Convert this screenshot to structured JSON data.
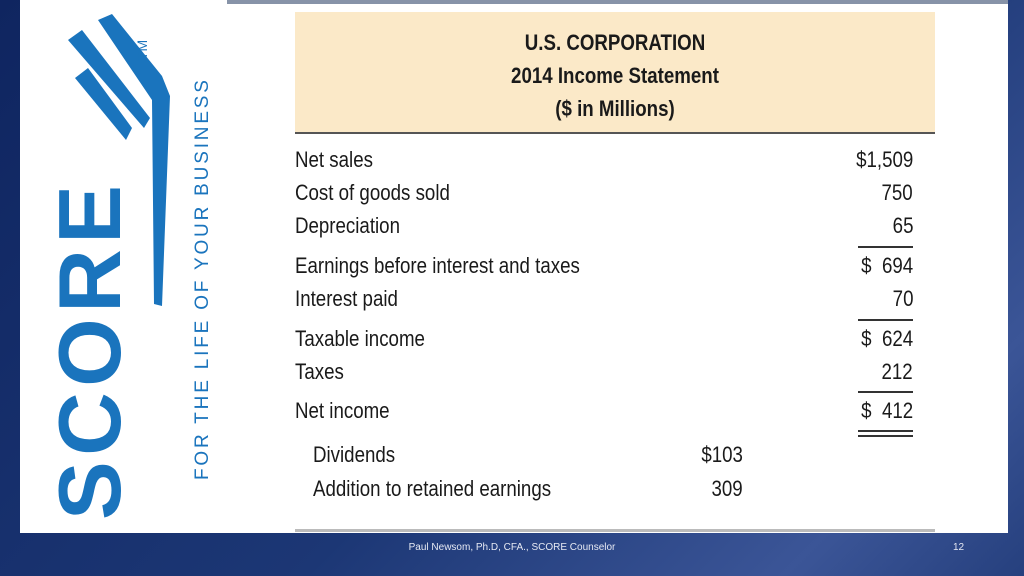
{
  "logo": {
    "text": "SCORE",
    "tagline": "FOR THE LIFE OF YOUR BUSINESS",
    "tm": "TM",
    "color": "#1a74bd"
  },
  "statement": {
    "title": "U.S. CORPORATION",
    "subtitle": "2014 Income Statement",
    "units": "($ in Millions)",
    "rows": [
      {
        "label": "Net sales",
        "value": "$1,509"
      },
      {
        "label": "Cost of goods sold",
        "value": "750"
      },
      {
        "label": "Depreciation",
        "value": "65"
      },
      {
        "label": "Earnings before interest and taxes",
        "value": "$  694"
      },
      {
        "label": "Interest paid",
        "value": "70"
      },
      {
        "label": "Taxable income",
        "value": "$  624"
      },
      {
        "label": "Taxes",
        "value": "212"
      },
      {
        "label": "Net income",
        "value": "$  412"
      }
    ],
    "sub_rows": [
      {
        "label": "Dividends",
        "value": "$103"
      },
      {
        "label": "Addition to retained earnings",
        "value": "309"
      }
    ]
  },
  "footer": {
    "text": "Paul Newsom, Ph.D, CFA., SCORE Counselor",
    "page": "12"
  }
}
